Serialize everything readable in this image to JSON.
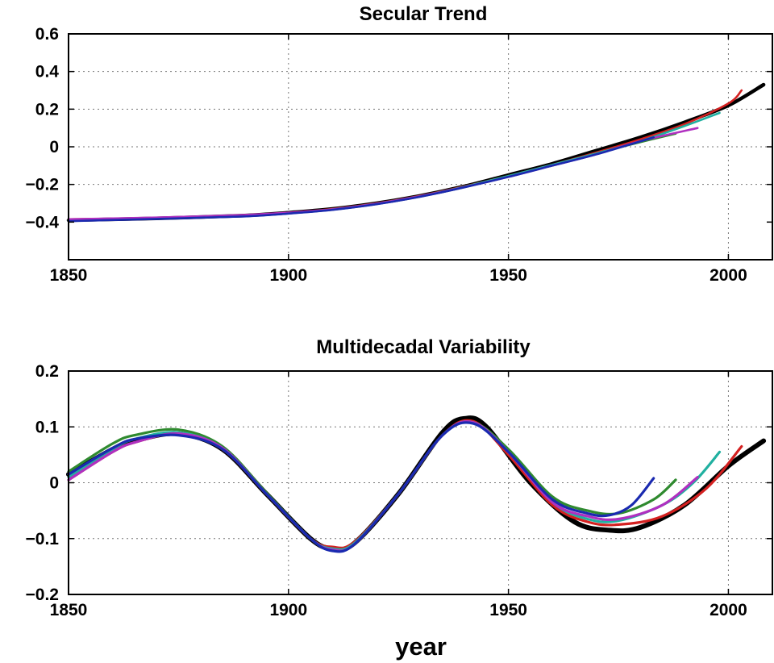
{
  "chart_data": [
    {
      "type": "line",
      "title": "Secular Trend",
      "xlabel": "",
      "ylabel": "",
      "xlim": [
        1850,
        2010
      ],
      "ylim": [
        -0.6,
        0.6
      ],
      "xticks": [
        1850,
        1900,
        1950,
        2000
      ],
      "yticks": [
        -0.4,
        -0.2,
        0,
        0.2,
        0.4,
        0.6
      ],
      "ytick_labels": [
        "−0.4",
        "−0.2",
        "0",
        "0.2",
        "0.4",
        "0.6"
      ],
      "grid": true,
      "series": [
        {
          "color": "#000000",
          "x": [
            1850,
            1870,
            1890,
            1900,
            1910,
            1920,
            1930,
            1940,
            1950,
            1960,
            1970,
            1980,
            1990,
            2000,
            2008
          ],
          "y": [
            -0.39,
            -0.38,
            -0.365,
            -0.35,
            -0.33,
            -0.3,
            -0.26,
            -0.21,
            -0.15,
            -0.09,
            -0.02,
            0.05,
            0.13,
            0.22,
            0.33
          ]
        },
        {
          "color": "#d42020",
          "x": [
            1850,
            1870,
            1890,
            1900,
            1910,
            1920,
            1930,
            1940,
            1950,
            1960,
            1970,
            1980,
            1990,
            2000,
            2003
          ],
          "y": [
            -0.385,
            -0.378,
            -0.363,
            -0.35,
            -0.33,
            -0.3,
            -0.26,
            -0.21,
            -0.155,
            -0.095,
            -0.03,
            0.04,
            0.12,
            0.23,
            0.3
          ]
        },
        {
          "color": "#2f8a2f",
          "x": [
            1850,
            1870,
            1890,
            1900,
            1910,
            1920,
            1930,
            1940,
            1950,
            1960,
            1970,
            1980,
            1988
          ],
          "y": [
            -0.39,
            -0.38,
            -0.365,
            -0.352,
            -0.332,
            -0.302,
            -0.262,
            -0.212,
            -0.155,
            -0.1,
            -0.035,
            0.025,
            0.07
          ]
        },
        {
          "color": "#20b0a0",
          "x": [
            1850,
            1870,
            1890,
            1900,
            1910,
            1920,
            1930,
            1940,
            1950,
            1960,
            1970,
            1980,
            1990,
            1998
          ],
          "y": [
            -0.39,
            -0.38,
            -0.365,
            -0.352,
            -0.332,
            -0.302,
            -0.262,
            -0.212,
            -0.155,
            -0.095,
            -0.035,
            0.03,
            0.11,
            0.18
          ]
        },
        {
          "color": "#b030c0",
          "x": [
            1850,
            1870,
            1890,
            1900,
            1910,
            1920,
            1930,
            1940,
            1950,
            1960,
            1970,
            1980,
            1993
          ],
          "y": [
            -0.385,
            -0.376,
            -0.362,
            -0.35,
            -0.332,
            -0.302,
            -0.262,
            -0.214,
            -0.16,
            -0.1,
            -0.04,
            0.03,
            0.1
          ]
        },
        {
          "color": "#1a2ab0",
          "x": [
            1850,
            1870,
            1890,
            1900,
            1910,
            1920,
            1930,
            1940,
            1950,
            1960,
            1970,
            1983
          ],
          "y": [
            -0.395,
            -0.383,
            -0.37,
            -0.355,
            -0.335,
            -0.305,
            -0.265,
            -0.215,
            -0.16,
            -0.1,
            -0.04,
            0.05
          ]
        }
      ]
    },
    {
      "type": "line",
      "title": "Multidecadal Variability",
      "xlabel": "year",
      "ylabel": "",
      "xlim": [
        1850,
        2010
      ],
      "ylim": [
        -0.2,
        0.2
      ],
      "xticks": [
        1850,
        1900,
        1950,
        2000
      ],
      "yticks": [
        -0.2,
        -0.1,
        0,
        0.1,
        0.2
      ],
      "ytick_labels": [
        "−0.2",
        "−0.1",
        "0",
        "0.1",
        "0.2"
      ],
      "grid": true,
      "series": [
        {
          "color": "#000000",
          "x": [
            1850,
            1860,
            1865,
            1875,
            1885,
            1895,
            1905,
            1910,
            1915,
            1925,
            1935,
            1940,
            1945,
            1955,
            1965,
            1973,
            1980,
            1990,
            2000,
            2008
          ],
          "y": [
            0.015,
            0.06,
            0.075,
            0.088,
            0.06,
            -0.02,
            -0.1,
            -0.118,
            -0.108,
            -0.02,
            0.09,
            0.115,
            0.1,
            0.0,
            -0.07,
            -0.085,
            -0.08,
            -0.04,
            0.03,
            0.075
          ]
        },
        {
          "color": "#d42020",
          "x": [
            1850,
            1860,
            1865,
            1875,
            1885,
            1895,
            1905,
            1910,
            1915,
            1925,
            1935,
            1942,
            1950,
            1960,
            1968,
            1975,
            1985,
            1995,
            2003
          ],
          "y": [
            0.005,
            0.055,
            0.072,
            0.088,
            0.06,
            -0.02,
            -0.1,
            -0.115,
            -0.106,
            -0.02,
            0.085,
            0.11,
            0.05,
            -0.04,
            -0.07,
            -0.075,
            -0.06,
            -0.01,
            0.065
          ]
        },
        {
          "color": "#2f8a2f",
          "x": [
            1850,
            1860,
            1865,
            1875,
            1885,
            1895,
            1905,
            1910,
            1915,
            1925,
            1935,
            1942,
            1950,
            1960,
            1968,
            1975,
            1983,
            1988
          ],
          "y": [
            0.02,
            0.07,
            0.085,
            0.095,
            0.065,
            -0.018,
            -0.1,
            -0.12,
            -0.11,
            -0.02,
            0.085,
            0.108,
            0.06,
            -0.025,
            -0.05,
            -0.055,
            -0.03,
            0.005
          ]
        },
        {
          "color": "#20b0a0",
          "x": [
            1850,
            1860,
            1865,
            1875,
            1885,
            1895,
            1905,
            1910,
            1915,
            1925,
            1935,
            1942,
            1950,
            1960,
            1968,
            1975,
            1985,
            1992,
            1998
          ],
          "y": [
            0.01,
            0.06,
            0.078,
            0.09,
            0.062,
            -0.02,
            -0.1,
            -0.118,
            -0.108,
            -0.02,
            0.085,
            0.108,
            0.055,
            -0.035,
            -0.065,
            -0.068,
            -0.04,
            0.0,
            0.055
          ]
        },
        {
          "color": "#b030c0",
          "x": [
            1850,
            1860,
            1865,
            1875,
            1885,
            1895,
            1905,
            1910,
            1915,
            1925,
            1935,
            1942,
            1950,
            1960,
            1968,
            1975,
            1985,
            1993
          ],
          "y": [
            0.005,
            0.055,
            0.072,
            0.088,
            0.062,
            -0.02,
            -0.1,
            -0.12,
            -0.11,
            -0.02,
            0.085,
            0.108,
            0.055,
            -0.035,
            -0.06,
            -0.065,
            -0.04,
            0.01
          ]
        },
        {
          "color": "#1a2ab0",
          "x": [
            1850,
            1860,
            1865,
            1875,
            1885,
            1895,
            1905,
            1910,
            1915,
            1925,
            1935,
            1942,
            1950,
            1960,
            1968,
            1973,
            1978,
            1983
          ],
          "y": [
            0.015,
            0.062,
            0.078,
            0.085,
            0.06,
            -0.02,
            -0.1,
            -0.122,
            -0.11,
            -0.02,
            0.085,
            0.106,
            0.055,
            -0.03,
            -0.055,
            -0.058,
            -0.04,
            0.008
          ]
        }
      ]
    }
  ]
}
